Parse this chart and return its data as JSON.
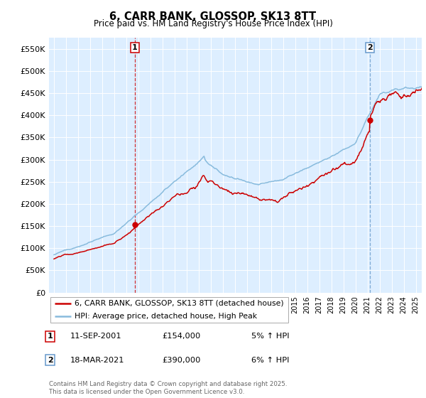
{
  "title": "6, CARR BANK, GLOSSOP, SK13 8TT",
  "subtitle": "Price paid vs. HM Land Registry's House Price Index (HPI)",
  "ylabel_ticks": [
    "£0",
    "£50K",
    "£100K",
    "£150K",
    "£200K",
    "£250K",
    "£300K",
    "£350K",
    "£400K",
    "£450K",
    "£500K",
    "£550K"
  ],
  "ytick_values": [
    0,
    50000,
    100000,
    150000,
    200000,
    250000,
    300000,
    350000,
    400000,
    450000,
    500000,
    550000
  ],
  "ylim": [
    0,
    575000
  ],
  "xlim_start": 1994.6,
  "xlim_end": 2025.5,
  "transaction1_date": 2001.7,
  "transaction1_price": 154000,
  "transaction2_date": 2021.2,
  "transaction2_price": 390000,
  "line_color_property": "#cc0000",
  "line_color_hpi": "#88bbdd",
  "vline1_color": "#cc0000",
  "vline1_style": "--",
  "vline2_color": "#6699cc",
  "vline2_style": "--",
  "legend_label_property": "6, CARR BANK, GLOSSOP, SK13 8TT (detached house)",
  "legend_label_hpi": "HPI: Average price, detached house, High Peak",
  "annotation1_date": "11-SEP-2001",
  "annotation1_price": "£154,000",
  "annotation1_hpi": "5% ↑ HPI",
  "annotation2_date": "18-MAR-2021",
  "annotation2_price": "£390,000",
  "annotation2_hpi": "6% ↑ HPI",
  "footer": "Contains HM Land Registry data © Crown copyright and database right 2025.\nThis data is licensed under the Open Government Licence v3.0.",
  "plot_bg_color": "#ddeeff",
  "grid_color": "#ffffff",
  "fig_bg_color": "#ffffff"
}
